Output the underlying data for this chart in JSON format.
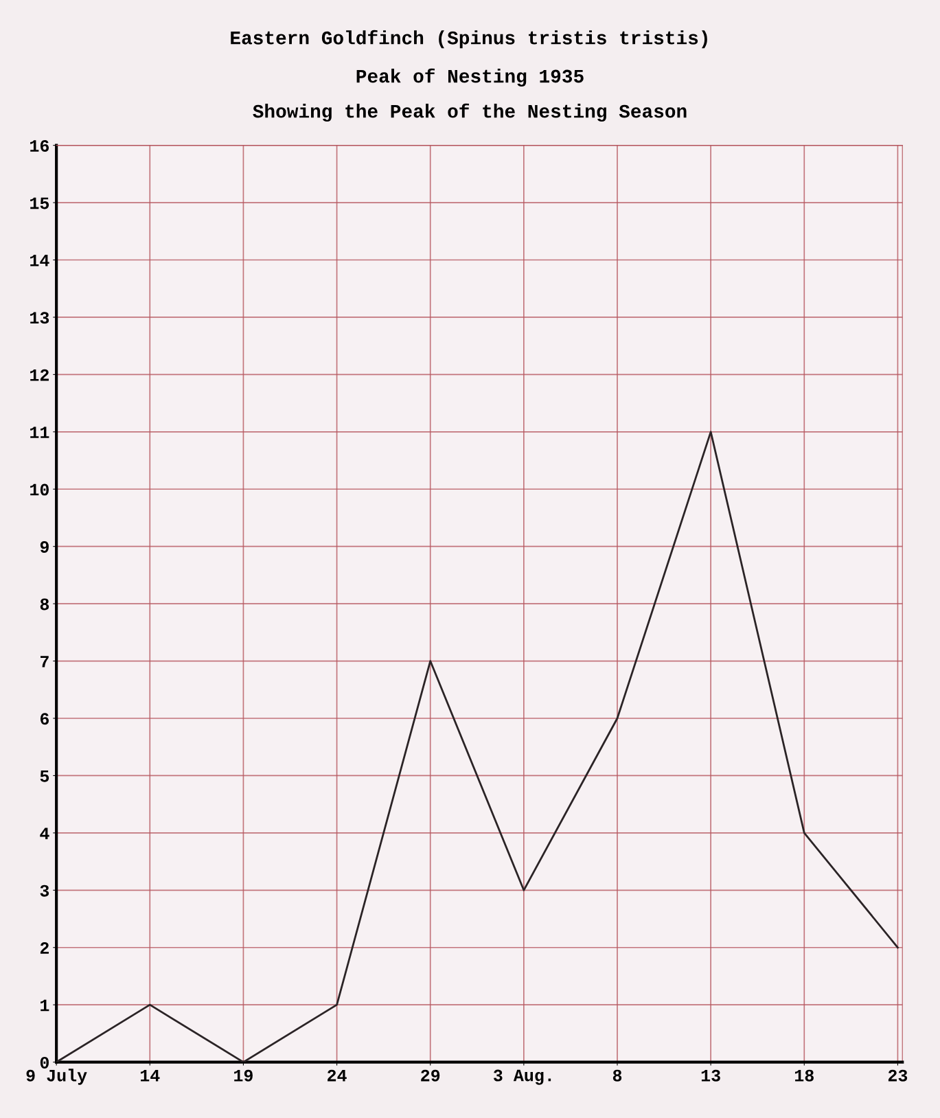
{
  "chart_data": {
    "type": "line",
    "title": "Eastern Goldfinch (Spinus tristis tristis)",
    "subtitle": "Peak of Nesting 1935\nShowing the Peak of the Nesting Season",
    "categories": [
      "9 July",
      "14",
      "19",
      "24",
      "29",
      "3 Aug.",
      "8",
      "13",
      "18",
      "23"
    ],
    "series": [
      {
        "color": "#2b2426",
        "values": [
          0,
          1,
          0,
          1,
          7,
          3,
          6,
          11,
          4,
          2
        ]
      }
    ],
    "ylim": [
      0,
      16
    ],
    "yticks": [
      0,
      1,
      2,
      3,
      4,
      5,
      6,
      7,
      8,
      9,
      10,
      11,
      12,
      13,
      14,
      15,
      16
    ],
    "grid": true,
    "marker": "none",
    "line_style": "solid"
  }
}
